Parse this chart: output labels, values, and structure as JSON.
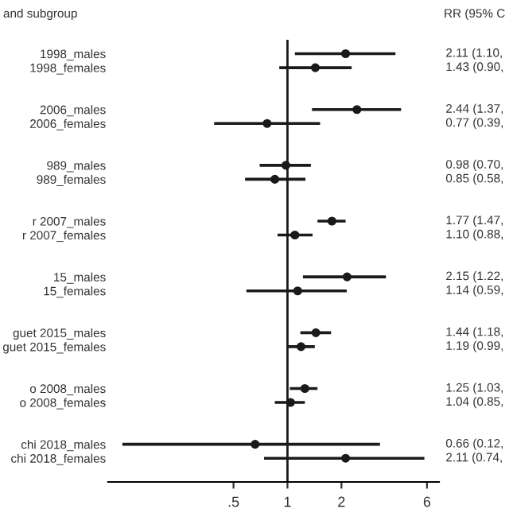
{
  "chart_data": {
    "type": "scatter",
    "orientation": "horizontal",
    "log": "x",
    "marker": "circle",
    "grid": false,
    "legend": false,
    "annotations": [
      "and subgroup",
      "RR (95% C"
    ],
    "categories": [
      "1998_males",
      "1998_females",
      null,
      null,
      "2006_males",
      "2006_females",
      null,
      null,
      "989_males",
      "989_females",
      null,
      null,
      "r 2007_males",
      "r 2007_females",
      null,
      null,
      "15_males",
      "15_females",
      null,
      null,
      "guet 2015_males",
      "guet 2015_females",
      null,
      null,
      "o 2008_males",
      "o 2008_females",
      null,
      null,
      "chi 2018_males",
      "chi 2018_females"
    ],
    "series": [
      {
        "color": "#1a1a1a",
        "values": [
          2.11,
          1.43,
          null,
          null,
          2.44,
          0.77,
          null,
          null,
          0.98,
          0.85,
          null,
          null,
          1.77,
          1.1,
          null,
          null,
          2.15,
          1.14,
          null,
          null,
          1.44,
          1.19,
          null,
          null,
          1.25,
          1.04,
          null,
          null,
          0.66,
          2.11
        ],
        "errors": [
          [
            1.1,
            4.0
          ],
          [
            0.9,
            2.28
          ],
          null,
          null,
          [
            1.37,
            4.3
          ],
          [
            0.39,
            1.52
          ],
          null,
          null,
          [
            0.7,
            1.35
          ],
          [
            0.58,
            1.26
          ],
          null,
          null,
          [
            1.47,
            2.11
          ],
          [
            0.88,
            1.38
          ],
          null,
          null,
          [
            1.22,
            3.54
          ],
          [
            0.59,
            2.14
          ],
          null,
          null,
          [
            1.18,
            1.75
          ],
          [
            0.99,
            1.42
          ],
          null,
          null,
          [
            1.03,
            1.47
          ],
          [
            0.85,
            1.25
          ],
          null,
          null,
          [
            0.12,
            3.28
          ],
          [
            0.74,
            5.8
          ]
        ],
        "value_labels": [
          "2.11 (1.10,",
          "1.43 (0.90,",
          null,
          null,
          "2.44 (1.37,",
          "0.77 (0.39,",
          null,
          null,
          "0.98 (0.70,",
          "0.85 (0.58,",
          null,
          null,
          "1.77 (1.47,",
          "1.10 (0.88,",
          null,
          null,
          "2.15 (1.22,",
          "1.14 (0.59,",
          null,
          null,
          "1.44 (1.18,",
          "1.19 (0.99,",
          null,
          null,
          "1.25 (1.03,",
          "1.04 (0.85,",
          null,
          null,
          "0.66 (0.12,",
          "2.11 (0.74,"
        ]
      }
    ],
    "xlim": [
      0.1,
      7
    ],
    "xticks": [
      {
        "value": 0.5,
        "label": ".5"
      },
      1,
      2,
      6
    ],
    "ref_lines": [
      {
        "axis": "x",
        "value": 1,
        "color": "#1a1a1a"
      }
    ]
  }
}
